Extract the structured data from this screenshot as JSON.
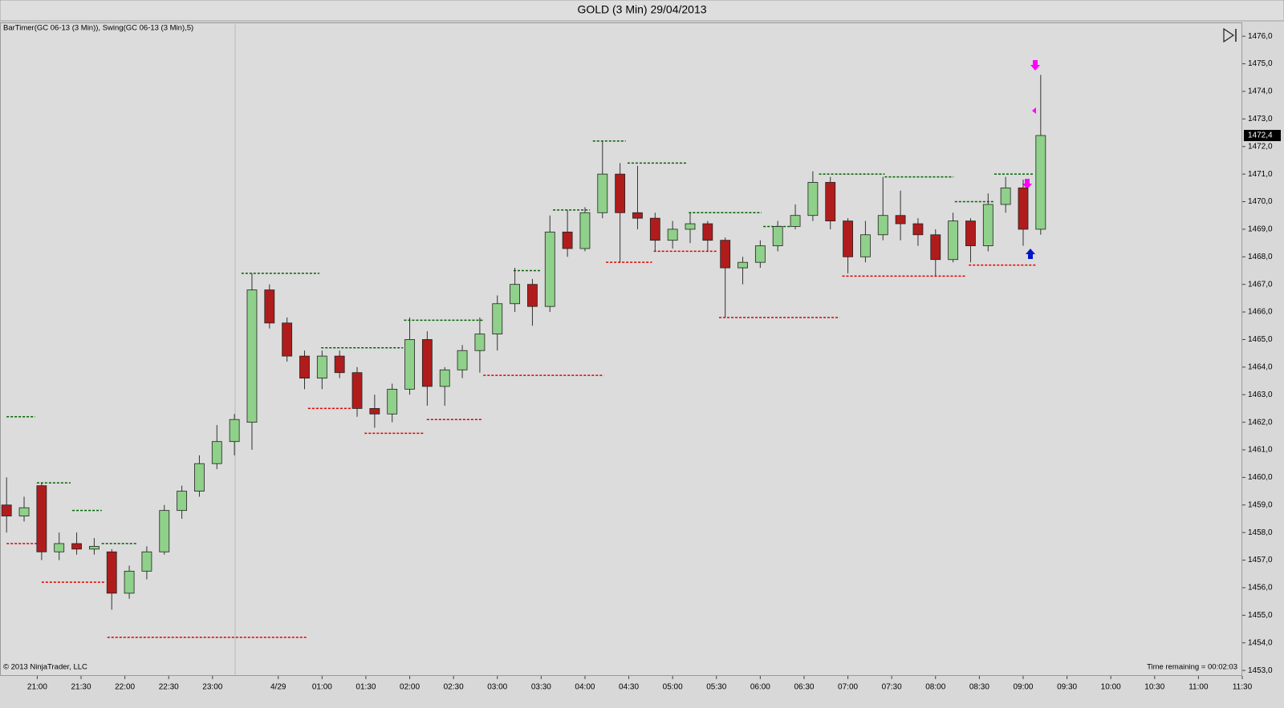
{
  "header": {
    "title": "GOLD (3 Min)  29/04/2013"
  },
  "indicator_label": "BarTimer(GC 06-13 (3 Min)), Swing(GC 06-13 (3 Min),5)",
  "copyright": "© 2013 NinjaTrader, LLC",
  "timer": "Time remaining = 00:02:03",
  "chart_data": {
    "type": "candlestick",
    "x": [
      0,
      4,
      8,
      12,
      16,
      20,
      24,
      28,
      32,
      36,
      40,
      44,
      48,
      52,
      56,
      60,
      64,
      68,
      72,
      76,
      80,
      84,
      88,
      92,
      96,
      100,
      104,
      108,
      112,
      116,
      120,
      124,
      128,
      132,
      136,
      140,
      144,
      148,
      152,
      156,
      160,
      164,
      168,
      172,
      176,
      180,
      184,
      188,
      192,
      196,
      200,
      204,
      208,
      212,
      216,
      220,
      224,
      228,
      232,
      236
    ],
    "open": [
      1459.0,
      1458.6,
      1459.7,
      1457.3,
      1457.6,
      1457.4,
      1457.3,
      1455.8,
      1456.6,
      1457.3,
      1458.8,
      1459.5,
      1460.5,
      1461.3,
      1462.0,
      1466.8,
      1465.6,
      1464.4,
      1463.6,
      1464.4,
      1463.8,
      1462.5,
      1462.3,
      1463.2,
      1465.0,
      1463.3,
      1463.9,
      1464.6,
      1465.2,
      1466.3,
      1467.0,
      1466.2,
      1468.9,
      1468.3,
      1469.6,
      1471.0,
      1469.6,
      1469.4,
      1468.6,
      1469.0,
      1469.2,
      1468.6,
      1467.6,
      1467.8,
      1468.4,
      1469.1,
      1469.5,
      1470.7,
      1469.3,
      1468.0,
      1468.8,
      1469.5,
      1469.2,
      1468.8,
      1467.9,
      1469.3,
      1468.4,
      1469.9,
      1470.5,
      1469.0
    ],
    "high": [
      1460.0,
      1459.3,
      1459.8,
      1458.0,
      1458.0,
      1457.8,
      1457.4,
      1456.8,
      1457.5,
      1459.0,
      1459.7,
      1460.8,
      1461.9,
      1462.3,
      1467.4,
      1467.0,
      1465.8,
      1464.6,
      1464.6,
      1464.6,
      1464.0,
      1463.0,
      1463.4,
      1465.8,
      1465.3,
      1464.0,
      1464.8,
      1465.8,
      1466.6,
      1467.6,
      1467.2,
      1469.5,
      1469.7,
      1469.8,
      1472.2,
      1471.4,
      1471.3,
      1469.6,
      1469.3,
      1469.6,
      1469.3,
      1468.7,
      1468.0,
      1468.6,
      1469.3,
      1469.9,
      1471.1,
      1470.9,
      1469.4,
      1469.3,
      1470.9,
      1470.4,
      1469.4,
      1469.0,
      1469.6,
      1469.4,
      1470.3,
      1470.9,
      1470.8,
      1474.6
    ],
    "low": [
      1458.0,
      1458.4,
      1457.0,
      1457.0,
      1457.2,
      1457.2,
      1455.2,
      1455.6,
      1456.3,
      1457.2,
      1458.5,
      1459.3,
      1460.3,
      1460.8,
      1461.0,
      1465.4,
      1464.2,
      1463.2,
      1463.2,
      1463.6,
      1462.2,
      1461.8,
      1462.0,
      1463.0,
      1462.6,
      1462.6,
      1463.6,
      1463.8,
      1464.6,
      1466.0,
      1465.5,
      1466.0,
      1468.0,
      1468.2,
      1469.4,
      1467.8,
      1469.0,
      1468.2,
      1468.3,
      1468.5,
      1468.2,
      1465.8,
      1467.0,
      1467.6,
      1468.2,
      1469.0,
      1469.3,
      1469.0,
      1467.4,
      1467.8,
      1468.6,
      1468.6,
      1468.4,
      1467.3,
      1467.8,
      1467.8,
      1468.2,
      1469.6,
      1468.4,
      1468.8
    ],
    "close": [
      1458.6,
      1458.9,
      1457.3,
      1457.6,
      1457.4,
      1457.5,
      1455.8,
      1456.6,
      1457.3,
      1458.8,
      1459.5,
      1460.5,
      1461.3,
      1462.1,
      1466.8,
      1465.6,
      1464.4,
      1463.6,
      1464.4,
      1463.8,
      1462.5,
      1462.3,
      1463.2,
      1465.0,
      1463.3,
      1463.9,
      1464.6,
      1465.2,
      1466.3,
      1467.0,
      1466.2,
      1468.9,
      1468.3,
      1469.6,
      1471.0,
      1469.6,
      1469.4,
      1468.6,
      1469.0,
      1469.2,
      1468.6,
      1467.6,
      1467.8,
      1468.4,
      1469.1,
      1469.5,
      1470.7,
      1469.3,
      1468.0,
      1468.8,
      1469.5,
      1469.2,
      1468.8,
      1467.9,
      1469.3,
      1468.4,
      1469.9,
      1470.5,
      1469.0,
      1472.4
    ],
    "up_color": "#8fd08a",
    "down_color": "#b01c1c",
    "swing_high_color": "#006400",
    "swing_low_color": "#e00000",
    "swing_highs": [
      {
        "x": [
          0,
          6.5
        ],
        "value": 1462.2
      },
      {
        "x": [
          6.9,
          14.6
        ],
        "value": 1459.8
      },
      {
        "x": [
          15,
          21.7
        ],
        "value": 1458.8
      },
      {
        "x": [
          21.7,
          29.7
        ],
        "value": 1457.6
      },
      {
        "x": [
          53.6,
          71.4
        ],
        "value": 1467.4
      },
      {
        "x": [
          71.8,
          90.5
        ],
        "value": 1464.7
      },
      {
        "x": [
          90.7,
          108.8
        ],
        "value": 1465.7
      },
      {
        "x": [
          115.7,
          121.9
        ],
        "value": 1467.5
      },
      {
        "x": [
          124.7,
          133.1
        ],
        "value": 1469.7
      },
      {
        "x": [
          133.8,
          141.3
        ],
        "value": 1472.2
      },
      {
        "x": [
          141.7,
          155.1
        ],
        "value": 1471.4
      },
      {
        "x": [
          155.7,
          172.3
        ],
        "value": 1469.6
      },
      {
        "x": [
          172.7,
          178.9
        ],
        "value": 1469.1
      },
      {
        "x": [
          185.4,
          200.4
        ],
        "value": 1471.0
      },
      {
        "x": [
          200.4,
          216.1
        ],
        "value": 1470.9
      },
      {
        "x": [
          216.4,
          225.2
        ],
        "value": 1470.0
      },
      {
        "x": [
          225.4,
          234.4
        ],
        "value": 1471.0
      }
    ],
    "swing_lows": [
      {
        "x": [
          0,
          6.9
        ],
        "value": 1457.6
      },
      {
        "x": [
          8,
          22.4
        ],
        "value": 1456.2
      },
      {
        "x": [
          23,
          68.4
        ],
        "value": 1454.2
      },
      {
        "x": [
          68.8,
          78.5
        ],
        "value": 1462.5
      },
      {
        "x": [
          81.7,
          95.3
        ],
        "value": 1461.6
      },
      {
        "x": [
          95.9,
          108.4
        ],
        "value": 1462.1
      },
      {
        "x": [
          108.8,
          136.3
        ],
        "value": 1463.7
      },
      {
        "x": [
          136.8,
          147.3
        ],
        "value": 1467.8
      },
      {
        "x": [
          147.7,
          162.2
        ],
        "value": 1468.2
      },
      {
        "x": [
          162.6,
          190.1
        ],
        "value": 1465.8
      },
      {
        "x": [
          190.7,
          219.1
        ],
        "value": 1467.3
      },
      {
        "x": [
          219.6,
          235.1
        ],
        "value": 1467.7
      }
    ],
    "current_price": {
      "value": 1472.4,
      "label": "1472,4"
    },
    "xlim": [
      -1.5,
      282
    ],
    "ylim": [
      1452.8,
      1476.5
    ],
    "xticks": [
      {
        "value": 7,
        "label": "21:00"
      },
      {
        "value": 17,
        "label": "21:30"
      },
      {
        "value": 27,
        "label": "22:00"
      },
      {
        "value": 37,
        "label": "22:30"
      },
      {
        "value": 47,
        "label": "23:00"
      },
      {
        "value": 62,
        "label": "4/29"
      },
      {
        "value": 72,
        "label": "01:00"
      },
      {
        "value": 82,
        "label": "01:30"
      },
      {
        "value": 92,
        "label": "02:00"
      },
      {
        "value": 102,
        "label": "02:30"
      },
      {
        "value": 112,
        "label": "03:00"
      },
      {
        "value": 122,
        "label": "03:30"
      },
      {
        "value": 132,
        "label": "04:00"
      },
      {
        "value": 142,
        "label": "04:30"
      },
      {
        "value": 152,
        "label": "05:00"
      },
      {
        "value": 162,
        "label": "05:30"
      },
      {
        "value": 172,
        "label": "06:00"
      },
      {
        "value": 182,
        "label": "06:30"
      },
      {
        "value": 192,
        "label": "07:00"
      },
      {
        "value": 202,
        "label": "07:30"
      },
      {
        "value": 212,
        "label": "08:00"
      },
      {
        "value": 222,
        "label": "08:30"
      },
      {
        "value": 232,
        "label": "09:00"
      },
      {
        "value": 242,
        "label": "09:30"
      },
      {
        "value": 252,
        "label": "10:00"
      },
      {
        "value": 262,
        "label": "10:30"
      },
      {
        "value": 272,
        "label": "11:00"
      },
      {
        "value": 282,
        "label": "11:30"
      }
    ],
    "yticks": [
      {
        "value": 1453,
        "label": "1453,0"
      },
      {
        "value": 1454,
        "label": "1454,0"
      },
      {
        "value": 1455,
        "label": "1455,0"
      },
      {
        "value": 1456,
        "label": "1456,0"
      },
      {
        "value": 1457,
        "label": "1457,0"
      },
      {
        "value": 1458,
        "label": "1458,0"
      },
      {
        "value": 1459,
        "label": "1459,0"
      },
      {
        "value": 1460,
        "label": "1460,0"
      },
      {
        "value": 1461,
        "label": "1461,0"
      },
      {
        "value": 1462,
        "label": "1462,0"
      },
      {
        "value": 1463,
        "label": "1463,0"
      },
      {
        "value": 1464,
        "label": "1464,0"
      },
      {
        "value": 1465,
        "label": "1465,0"
      },
      {
        "value": 1466,
        "label": "1466,0"
      },
      {
        "value": 1467,
        "label": "1467,0"
      },
      {
        "value": 1468,
        "label": "1468,0"
      },
      {
        "value": 1469,
        "label": "1469,0"
      },
      {
        "value": 1470,
        "label": "1470,0"
      },
      {
        "value": 1471,
        "label": "1471,0"
      },
      {
        "value": 1472,
        "label": "1472,0"
      },
      {
        "value": 1473,
        "label": "1473,0"
      },
      {
        "value": 1474,
        "label": "1474,0"
      },
      {
        "value": 1475,
        "label": "1475,0"
      },
      {
        "value": 1476,
        "label": "1476,0"
      }
    ]
  }
}
